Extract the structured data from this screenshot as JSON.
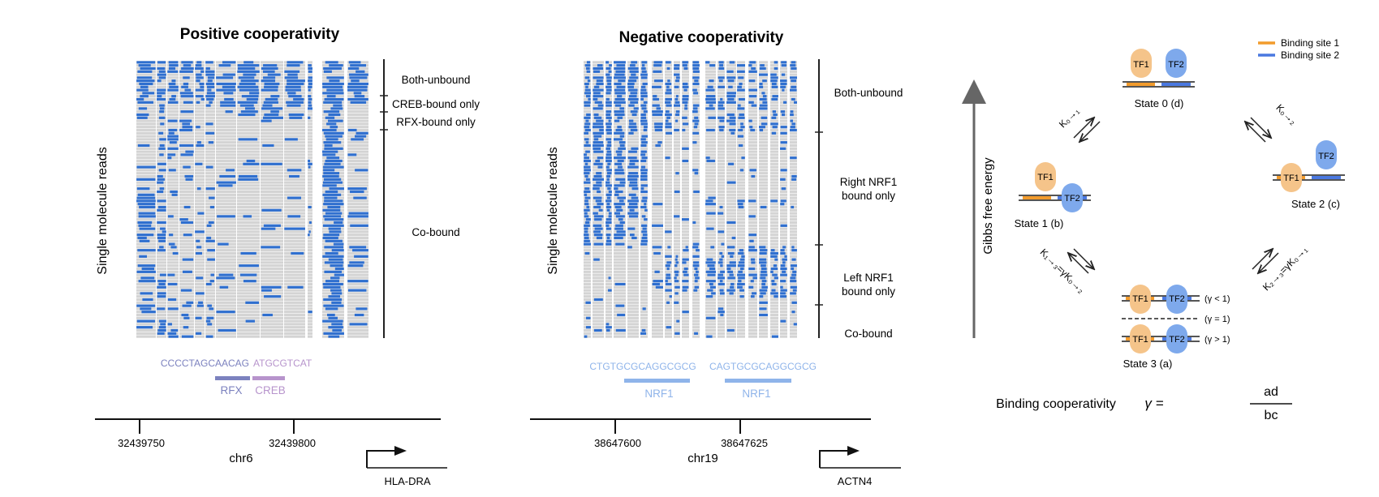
{
  "colors": {
    "read_blue": "#2f6fcf",
    "read_blue_light": "#5a8fd9",
    "read_gray": "#d4d4d4",
    "rfx": "#7c82bf",
    "creb": "#b794cc",
    "nrf1": "#8fb4ea",
    "tf1_fill": "#f5c48a",
    "tf2_fill": "#7ea9ec",
    "site1": "#f29b2c",
    "site2": "#4a78e0",
    "dna": "#555555"
  },
  "panel_positive": {
    "title": "Positive cooperativity",
    "ylabel": "Single molecule reads",
    "groups": [
      "Both-unbound",
      "CREB-bound only",
      "RFX-bound only",
      "Co-bound"
    ],
    "seq_left": "CCCCTAGCAACAG",
    "seq_right": "ATGCGTCAT",
    "motif_left": "RFX",
    "motif_right": "CREB",
    "ticks": [
      "32439750",
      "32439800"
    ],
    "chrom": "chr6",
    "gene": "HLA-DRA"
  },
  "panel_negative": {
    "title": "Negative cooperativity",
    "ylabel": "Single molecule reads",
    "groups": [
      "Both-unbound",
      "Right NRF1",
      "bound only",
      "Left NRF1",
      "bound only",
      "Co-bound"
    ],
    "seq_left": "CTGTGCGCAGGCGCG",
    "seq_right": "CAGTGCGCAGGCGCG",
    "motif_left": "NRF1",
    "motif_right": "NRF1",
    "ticks": [
      "38647600",
      "38647625"
    ],
    "chrom": "chr19",
    "gene": "ACTN4"
  },
  "panel_model": {
    "legend": [
      "Binding site 1",
      "Binding site 2"
    ],
    "yaxis": "Gibbs free energy",
    "tf1": "TF1",
    "tf2": "TF2",
    "states": [
      "State 0 (d)",
      "State 1 (b)",
      "State 2 (c)",
      "State 3 (a)"
    ],
    "k01": "K₀→₁",
    "k02": "K₀→₂",
    "k13": "K₁→₃=γK₀→₂",
    "k23": "K₂→₃=γK₀→₁",
    "gamma_lt": "(γ < 1)",
    "gamma_eq": "(γ = 1)",
    "gamma_gt": "(γ > 1)",
    "formula_label": "Binding cooperativity",
    "formula_symbol": "γ =",
    "numerator": "ad",
    "denominator": "bc"
  }
}
